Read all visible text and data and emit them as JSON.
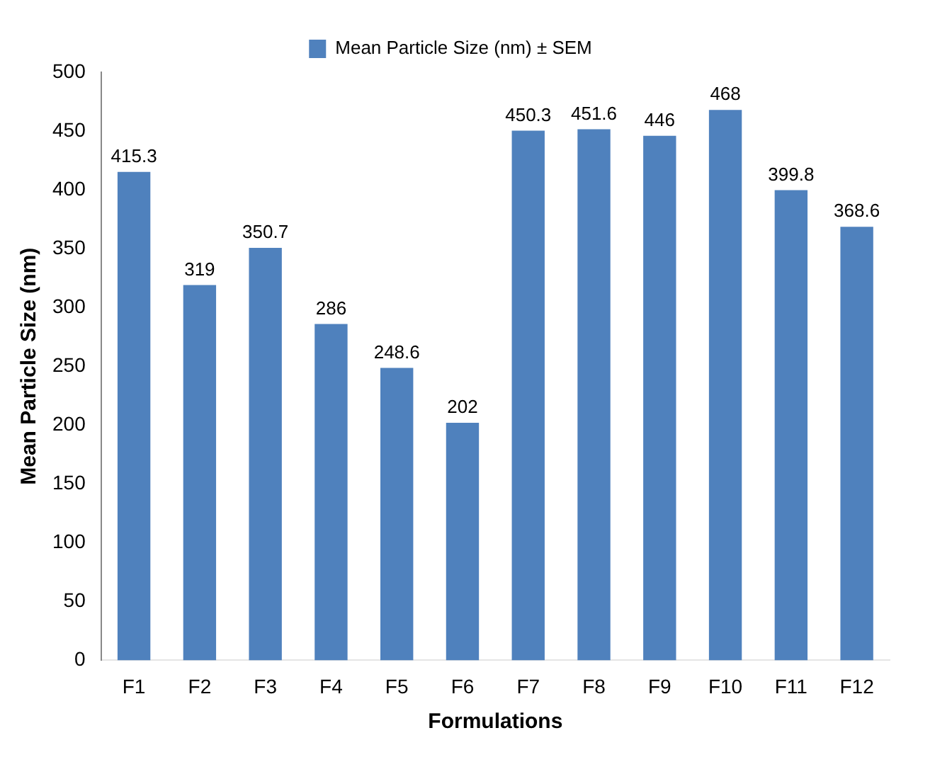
{
  "chart_data": {
    "type": "bar",
    "xlabel": "Formulations",
    "ylabel": "Mean Particle Size (nm)",
    "categories": [
      "F1",
      "F2",
      "F3",
      "F4",
      "F5",
      "F6",
      "F7",
      "F8",
      "F9",
      "F10",
      "F11",
      "F12"
    ],
    "series": [
      {
        "name": "Mean Particle Size (nm) ± SEM",
        "color": "#4f81bd",
        "values": [
          415.3,
          319,
          350.7,
          286,
          248.6,
          202,
          450.3,
          451.6,
          446,
          468,
          399.8,
          368.6
        ]
      }
    ],
    "ylim": [
      0,
      500
    ],
    "yticks": [
      0,
      50,
      100,
      150,
      200,
      250,
      300,
      350,
      400,
      450,
      500
    ],
    "grid": false,
    "legend": "top",
    "data_labels": true
  }
}
